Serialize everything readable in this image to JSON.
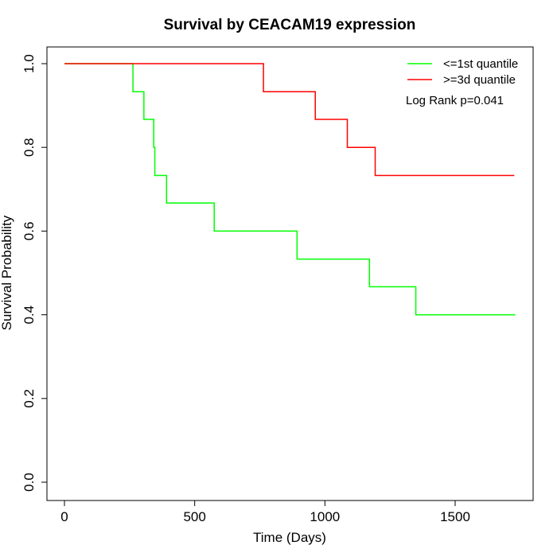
{
  "chart_data": {
    "type": "line",
    "title": "Survival by CEACAM19 expression",
    "xlabel": "Time (Days)",
    "ylabel": "Survival Probability",
    "xlim": [
      0,
      1800
    ],
    "ylim": [
      0,
      1.0
    ],
    "xticks": [
      0,
      500,
      1000,
      1500
    ],
    "yticks": [
      0.0,
      0.2,
      0.4,
      0.6,
      0.8,
      1.0
    ],
    "xtick_labels": [
      "0",
      "500",
      "1000",
      "1500"
    ],
    "ytick_labels": [
      "0.0",
      "0.2",
      "0.4",
      "0.6",
      "0.8",
      "1.0"
    ],
    "grid": false,
    "legend_position": "top-right",
    "annotation": "Log Rank p=0.041",
    "series": [
      {
        "name": "<=1st quantile",
        "color": "#00ff00",
        "step": true,
        "x": [
          0,
          263,
          305,
          343,
          347,
          392,
          575,
          893,
          1171,
          1349,
          1731
        ],
        "y": [
          1.0,
          0.933,
          0.867,
          0.8,
          0.733,
          0.667,
          0.6,
          0.533,
          0.467,
          0.4,
          0.4
        ]
      },
      {
        "name": ">=3d quantile",
        "color": "#ff0000",
        "step": true,
        "x": [
          0,
          764,
          963,
          1086,
          1193,
          1727
        ],
        "y": [
          1.0,
          0.933,
          0.867,
          0.8,
          0.733,
          0.733
        ]
      }
    ]
  }
}
